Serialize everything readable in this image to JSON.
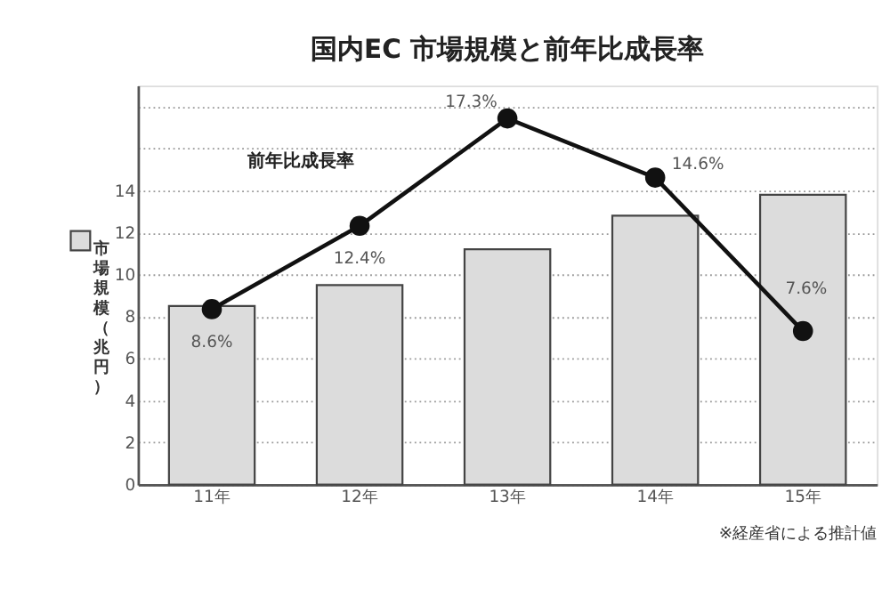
{
  "chart_data": {
    "type": "bar",
    "title": "国内EC 市場規模と前年比成長率",
    "categories": [
      "11年",
      "12年",
      "13年",
      "14年",
      "15年"
    ],
    "series": [
      {
        "name": "市場規模（兆円）",
        "color": "#dcdcdc",
        "values": [
          8.5,
          9.5,
          11.2,
          12.8,
          13.8
        ]
      },
      {
        "name": "前年比成長率",
        "type": "line",
        "axis": "y2",
        "color": "#111111",
        "values": [
          8.6,
          12.4,
          17.3,
          14.6,
          7.6
        ],
        "value_labels": [
          "8.6%",
          "12.4%",
          "17.3%",
          "14.6%",
          "7.6%"
        ]
      }
    ],
    "ylim": [
      0,
      19
    ],
    "yticks": [
      0,
      2,
      4,
      6,
      8,
      10,
      12,
      14,
      {
        "value": 16,
        "label": null
      },
      {
        "value": 18,
        "label": null
      }
    ],
    "y2lim": [
      0.6,
      18.8
    ],
    "grid": "y",
    "legend": "left",
    "marker": "circle",
    "line_style": "solid",
    "annotations": [
      "※経産省による推計値"
    ]
  }
}
